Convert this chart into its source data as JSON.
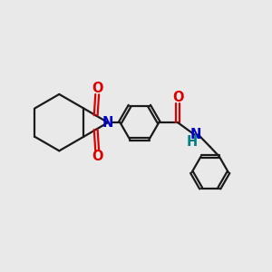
{
  "bg_color": "#e9e9e9",
  "bond_color": "#1a1a1a",
  "N_color": "#0000cc",
  "O_color": "#dd0000",
  "NH_color": "#008080",
  "line_width": 1.6,
  "font_size_atom": 10.5,
  "xlim": [
    0,
    10
  ],
  "ylim": [
    0,
    10
  ]
}
